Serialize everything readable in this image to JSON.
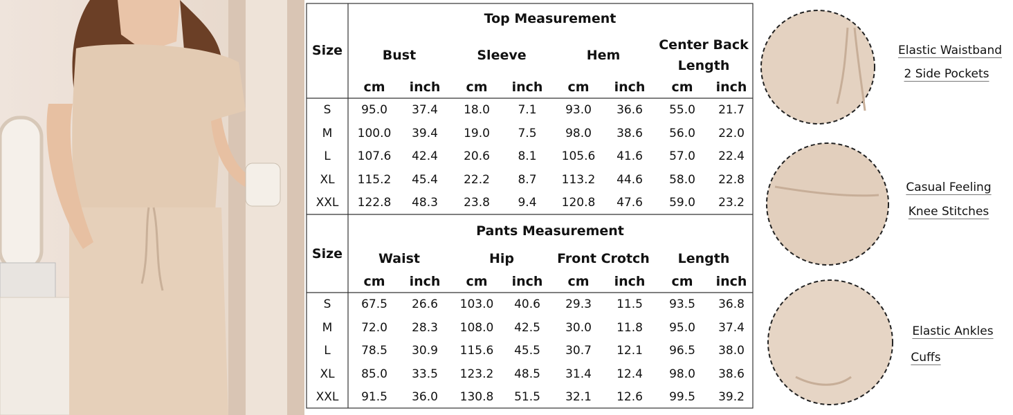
{
  "size_chart": [
    {
      "title": "Top Measurement",
      "size_label": "Size",
      "columns": [
        "Bust",
        "Sleeve",
        "Hem",
        "Center Back Length"
      ],
      "units": [
        "cm",
        "inch",
        "cm",
        "inch",
        "cm",
        "inch",
        "cm",
        "inch"
      ],
      "rows": [
        [
          "S",
          "95.0",
          "37.4",
          "18.0",
          "7.1",
          "93.0",
          "36.6",
          "55.0",
          "21.7"
        ],
        [
          "M",
          "100.0",
          "39.4",
          "19.0",
          "7.5",
          "98.0",
          "38.6",
          "56.0",
          "22.0"
        ],
        [
          "L",
          "107.6",
          "42.4",
          "20.6",
          "8.1",
          "105.6",
          "41.6",
          "57.0",
          "22.4"
        ],
        [
          "XL",
          "115.2",
          "45.4",
          "22.2",
          "8.7",
          "113.2",
          "44.6",
          "58.0",
          "22.8"
        ],
        [
          "XXL",
          "122.8",
          "48.3",
          "23.8",
          "9.4",
          "120.8",
          "47.6",
          "59.0",
          "23.2"
        ]
      ]
    },
    {
      "title": "Pants Measurement",
      "size_label": "Size",
      "columns": [
        "Waist",
        "Hip",
        "Front Crotch",
        "Length"
      ],
      "units": [
        "cm",
        "inch",
        "cm",
        "inch",
        "cm",
        "inch",
        "cm",
        "inch"
      ],
      "rows": [
        [
          "S",
          "67.5",
          "26.6",
          "103.0",
          "40.6",
          "29.3",
          "11.5",
          "93.5",
          "36.8"
        ],
        [
          "M",
          "72.0",
          "28.3",
          "108.0",
          "42.5",
          "30.0",
          "11.8",
          "95.0",
          "37.4"
        ],
        [
          "L",
          "78.5",
          "30.9",
          "115.6",
          "45.5",
          "30.7",
          "12.1",
          "96.5",
          "38.0"
        ],
        [
          "XL",
          "85.0",
          "33.5",
          "123.2",
          "48.5",
          "31.4",
          "12.4",
          "98.0",
          "38.6"
        ],
        [
          "XXL",
          "91.5",
          "36.0",
          "130.8",
          "51.5",
          "32.1",
          "12.6",
          "99.5",
          "39.2"
        ]
      ]
    }
  ],
  "callouts": [
    {
      "lines": [
        "Elastic Waistband",
        "2 Side Pockets"
      ]
    },
    {
      "lines": [
        "Casual Feeling",
        "Knee Stitches"
      ]
    },
    {
      "lines": [
        "Elastic Ankles",
        "Cuffs"
      ]
    }
  ]
}
